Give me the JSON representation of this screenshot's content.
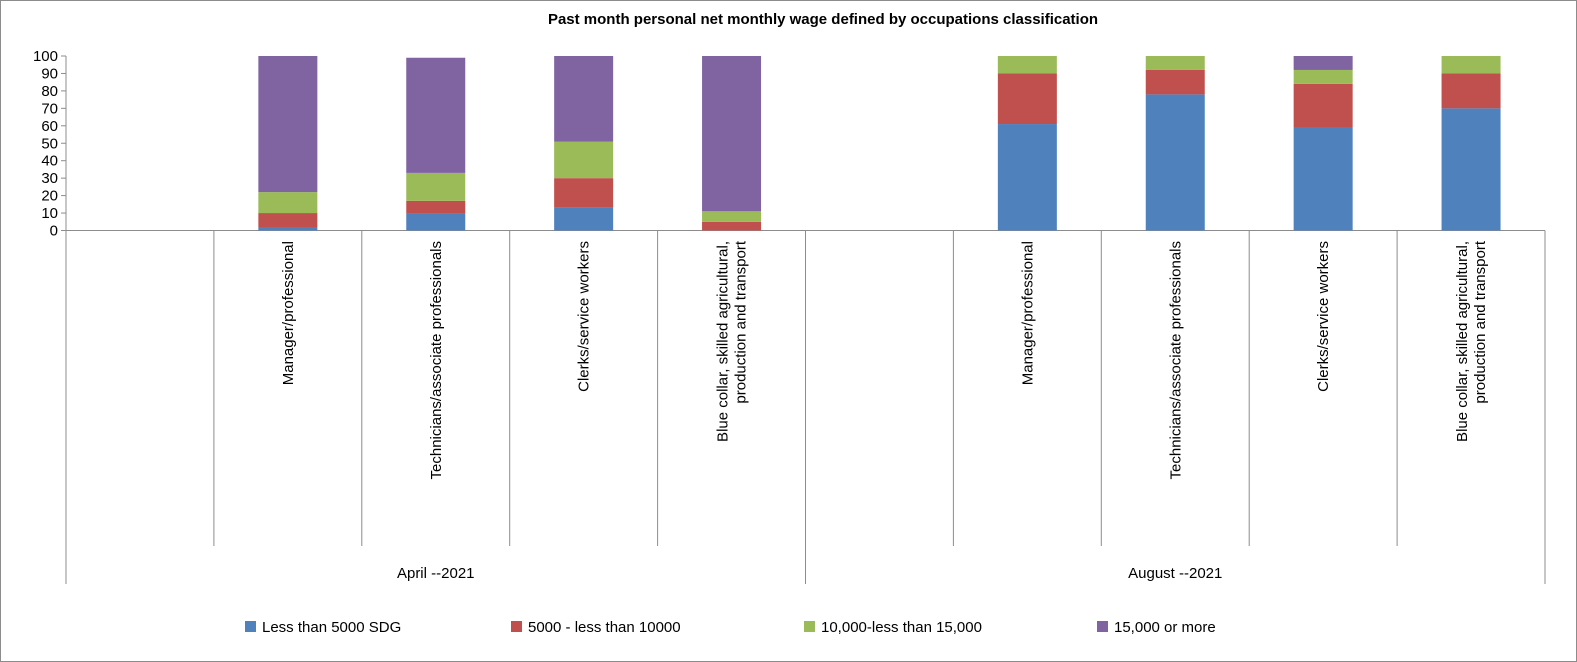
{
  "chart_data": {
    "type": "bar",
    "stacked": true,
    "title": "Past month personal net monthly wage defined by occupations classification",
    "ylim": [
      0,
      100
    ],
    "yticks": [
      0,
      10,
      20,
      30,
      40,
      50,
      60,
      70,
      80,
      90,
      100
    ],
    "grid": false,
    "legend_position": "bottom",
    "groups": [
      {
        "label": "April --2021",
        "categories": [
          [
            "Manager/professional"
          ],
          [
            "Technicians/associate professionals"
          ],
          [
            "Clerks/service workers"
          ],
          [
            "Blue collar, skilled agricultural,",
            "production and transport"
          ]
        ]
      },
      {
        "label": "August --2021",
        "categories": [
          [
            "Manager/professional"
          ],
          [
            "Technicians/associate professionals"
          ],
          [
            "Clerks/service workers"
          ],
          [
            "Blue collar, skilled agricultural,",
            "production and transport"
          ]
        ]
      }
    ],
    "series": [
      {
        "name": "Less than 5000 SDG",
        "color": "#4f81bd",
        "values": [
          2,
          10,
          13,
          0,
          61,
          78,
          59,
          70
        ]
      },
      {
        "name": "5000 - less than 10000",
        "color": "#c0504d",
        "values": [
          8,
          7,
          17,
          5,
          29,
          14,
          25,
          20
        ]
      },
      {
        "name": "10,000-less than 15,000",
        "color": "#9bbb59",
        "values": [
          12,
          16,
          21,
          6,
          10,
          8,
          8,
          10
        ]
      },
      {
        "name": "15,000 or more",
        "color": "#8064a2",
        "values": [
          78,
          66,
          49,
          89,
          0,
          0,
          8,
          0
        ]
      }
    ]
  }
}
